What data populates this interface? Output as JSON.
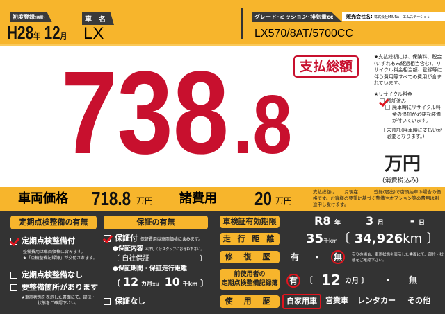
{
  "header": {
    "reg_label": "初度登録",
    "reg_sub": "(西暦)",
    "era_year": "H28",
    "year_unit": "年",
    "month": "12",
    "month_unit": "月",
    "name_label": "車　名",
    "car_name": "LX",
    "grade_label": "グレード･ミッション･排気量cc",
    "grade": "LX570/8AT/5700CC",
    "dealer_label": "販売会社名:",
    "dealer": "株式会社MIURA　エムステーション"
  },
  "total": {
    "badge": "支払総額",
    "int": "738",
    "dec": ".8",
    "unit": "万円",
    "tax": "(消費税込み)",
    "note": "★支払総額には、保険料、税金(いずれも未経過相当含む)、リサイクル料金相当額、登録等に伴う費用等すべての費用が含まれています。",
    "recycle_label": "★リサイクル料金",
    "recycle_paid": "預託済み",
    "recycle_opt1": "廃車時にリサイクル料金の追加が必要な装備が付いています。",
    "recycle_opt2": "未預託(廃車時に支払いが必要となります。)"
  },
  "prices": {
    "vehicle_label": "車両価格",
    "vehicle": "718.8",
    "unit": "万円",
    "fees_label": "諸費用",
    "fees": "20",
    "fees_unit": "万円",
    "note": "支払総額は　　月現在、　　　登録(届出)で店頭納車の場合の価格です。お客様の要望に基づく整備やオプション等の費用は別途申し受けます。"
  },
  "inspection": {
    "title": "定期点検整備の有無",
    "opt_yes": "定期点検整備付",
    "yes_note1": "整備費用は車両価格に含みます。",
    "yes_note2": "★「点検整備記録簿」が交付されます。",
    "opt_no": "定期点検整備なし",
    "opt_need": "要整備箇所があります",
    "need_note": "★車両状態を表示した書面にて、部位・状態をご確認下さい。"
  },
  "warranty": {
    "title": "保証の有無",
    "opt_yes": "保証付",
    "yes_note": "保証費用は車両価格に含みます。",
    "content_label": "●保証内容",
    "content_note": "※詳しくはスタッフにお尋ね下さい。",
    "content": "自社保証",
    "period_label": "●保証期間・保証走行距離",
    "months": "12",
    "months_unit": "カ月",
    "or": "又は",
    "km": "10",
    "km_unit": "千km",
    "opt_no": "保証なし"
  },
  "specs": {
    "shaken_label": "車検証有効期限",
    "shaken_year": "R8",
    "y": "年",
    "shaken_month": "3",
    "m": "月",
    "shaken_day": "-",
    "d": "日",
    "mileage_label": "走 行 距 離",
    "mileage_k": "35",
    "mileage_k_unit": "千km",
    "mileage": "34,926",
    "mileage_unit": "km",
    "repair_label": "修 復 歴",
    "yes": "有",
    "dot": "・",
    "no": "無",
    "repair_note": "有りの場合、車両状態を表示した書面にて、部位・状態をご確認下さい。",
    "record_label1": "前使用者の",
    "record_label2": "定期点検整備記録簿",
    "record_months": "12",
    "record_unit": "カ月",
    "use_label": "使 用 歴",
    "uses": [
      "自家用車",
      "営業車",
      "レンタカー",
      "その他"
    ]
  },
  "colors": {
    "yellow": "#F7B52C",
    "red": "#C8102E",
    "dark": "#333333"
  }
}
